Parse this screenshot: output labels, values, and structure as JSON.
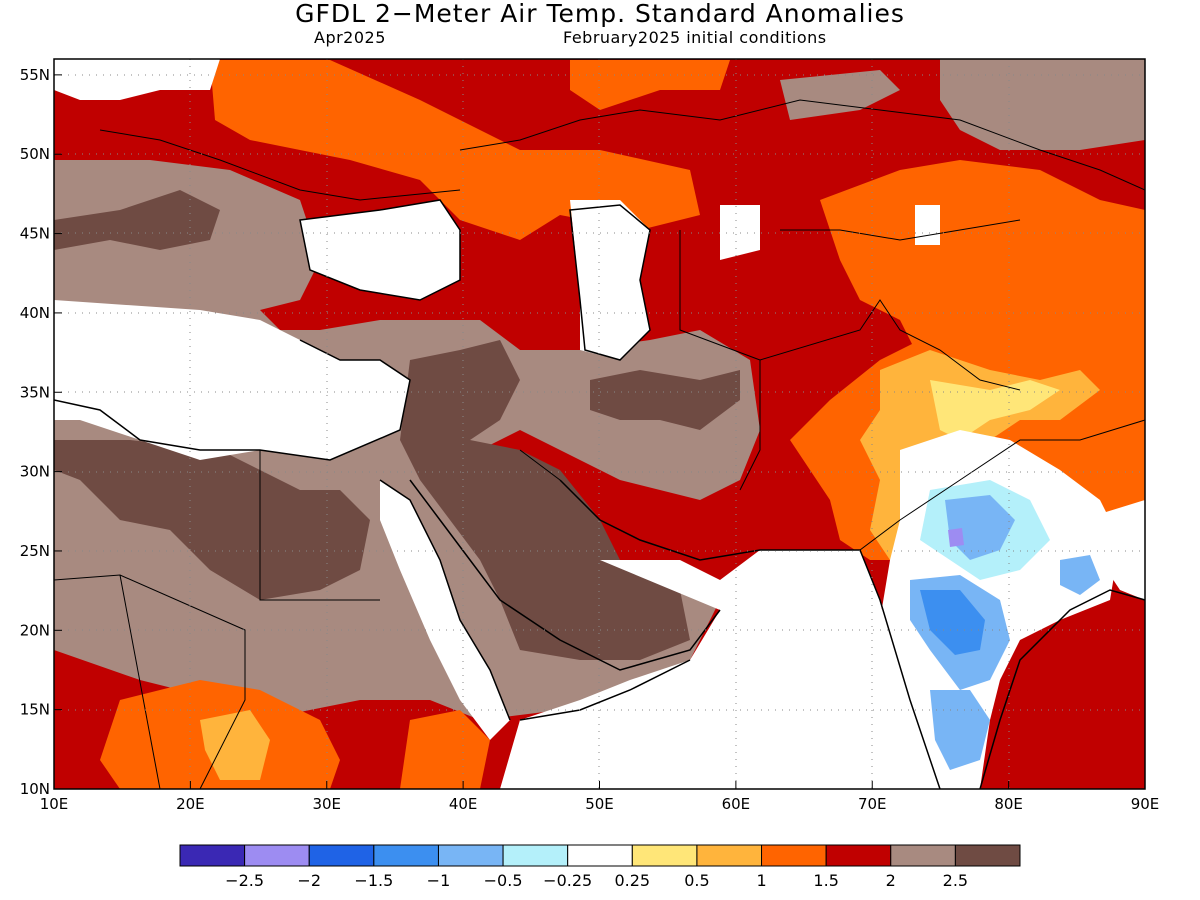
{
  "title": "GFDL 2−Meter Air Temp. Standard Anomalies",
  "subtitle_left": "Apr2025",
  "subtitle_right": "February2025 initial conditions",
  "map": {
    "lon_range": [
      10,
      90
    ],
    "lat_range": [
      10,
      56
    ],
    "lat_ticks": [
      "55N",
      "50N",
      "45N",
      "40N",
      "35N",
      "30N",
      "25N",
      "20N",
      "15N",
      "10N"
    ],
    "lon_ticks": [
      "10E",
      "20E",
      "30E",
      "40E",
      "50E",
      "60E",
      "70E",
      "80E",
      "90E"
    ],
    "gridlines": "dotted"
  },
  "colorbar": {
    "colors": [
      "#3a28b4",
      "#9d8cf2",
      "#1f63e6",
      "#3c8ff0",
      "#78b5f5",
      "#b4f0fa",
      "#ffffff",
      "#ffe678",
      "#ffb43c",
      "#ff6400",
      "#c00000",
      "#a88a80",
      "#6f4b43"
    ],
    "labels": [
      "−2.5",
      "−2",
      "−1.5",
      "−1",
      "−0.5",
      "−0.25",
      "0.25",
      "0.5",
      "1",
      "1.5",
      "2",
      "2.5"
    ]
  }
}
